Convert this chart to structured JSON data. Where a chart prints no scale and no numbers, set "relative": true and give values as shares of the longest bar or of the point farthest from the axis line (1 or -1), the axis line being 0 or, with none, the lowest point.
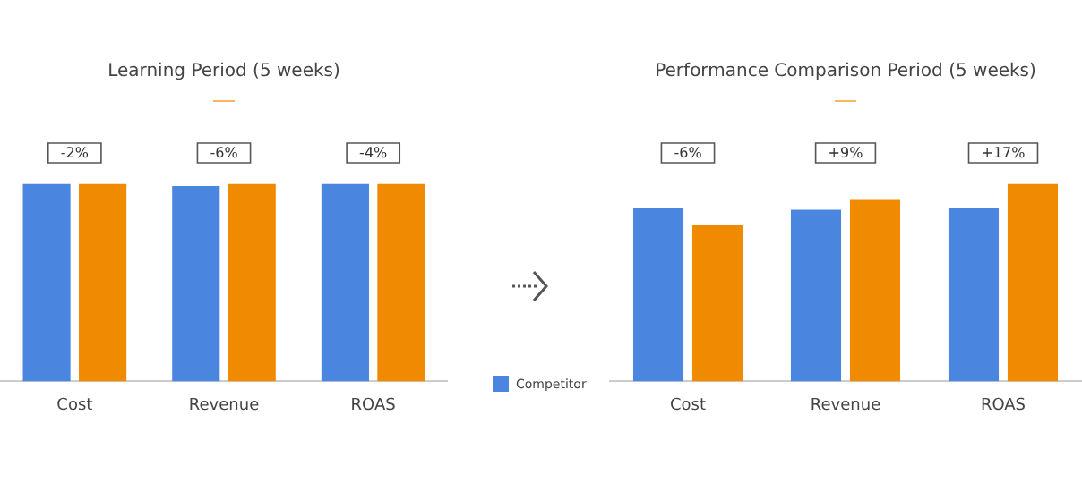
{
  "chart_data": [
    {
      "type": "bar",
      "title": "Learning Period (5 weeks)",
      "categories": [
        "Cost",
        "Revenue",
        "ROAS"
      ],
      "relative": true,
      "legend": "right",
      "grid": false,
      "series": [
        {
          "name": "Competitor",
          "color": "#4a86e0",
          "values": [
            1,
            0.99,
            1
          ]
        },
        {
          "color": "#f08a00",
          "values": [
            1,
            1,
            1
          ]
        }
      ],
      "annotations": [
        "-2%",
        "-6%",
        "-4%"
      ]
    },
    {
      "type": "bar",
      "title": "Performance Comparison Period (5 weeks)",
      "categories": [
        "Cost",
        "Revenue",
        "ROAS"
      ],
      "relative": true,
      "grid": false,
      "series": [
        {
          "color": "#4a86e0",
          "values": [
            0.88,
            0.87,
            0.88
          ]
        },
        {
          "color": "#f08a00",
          "values": [
            0.79,
            0.92,
            1
          ]
        }
      ],
      "annotations": [
        "-6%",
        "+9%",
        "+17%"
      ]
    }
  ]
}
